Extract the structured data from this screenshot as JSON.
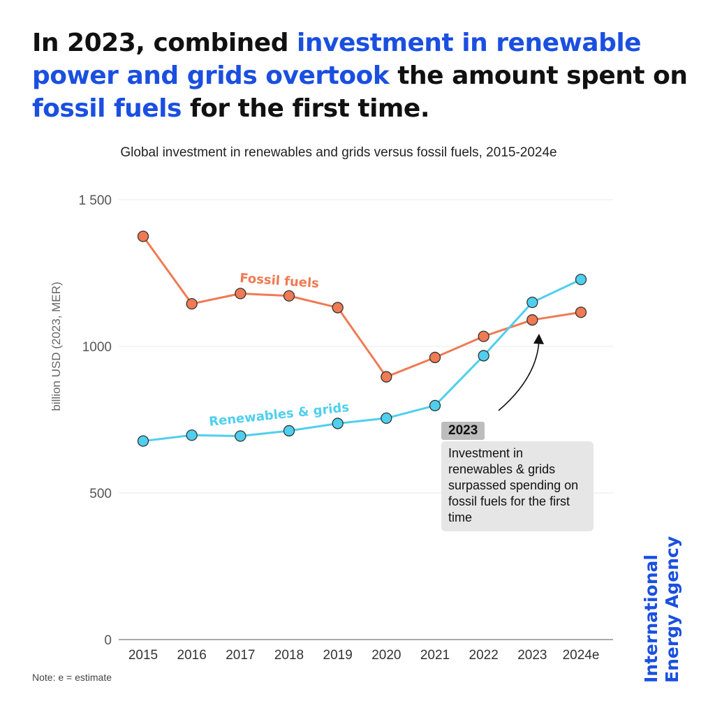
{
  "headline": {
    "part1": "In 2023, combined ",
    "part2": "investment in renewable power and grids overtook",
    "part3": " the amount spent on ",
    "part4": "fossil fuels",
    "part5": " for the first time."
  },
  "note": "Note: e = estimate",
  "logo": {
    "line1": "International",
    "line2": "Energy Agency"
  },
  "callout": {
    "year": "2023",
    "text": "Investment in renewables & grids surpassed spending on fossil fuels for the first time"
  },
  "colors": {
    "fossil": "#ef7a53",
    "renewables": "#4fcfee",
    "accent": "#1a4fe0"
  },
  "chart_data": {
    "type": "line",
    "title": "Global investment in renewables and grids versus fossil fuels, 2015-2024e",
    "xlabel": "",
    "ylabel": "billion USD (2023, MER)",
    "categories": [
      "2015",
      "2016",
      "2017",
      "2018",
      "2019",
      "2020",
      "2021",
      "2022",
      "2023",
      "2024e"
    ],
    "ylim": [
      0,
      1500
    ],
    "yticks": [
      0,
      500,
      1000,
      1500
    ],
    "ytick_labels": [
      "0",
      "500",
      "1000",
      "1 500"
    ],
    "grid": true,
    "series": [
      {
        "name": "Fossil fuels",
        "label": "Fossil fuels",
        "values": [
          1375,
          1145,
          1180,
          1172,
          1132,
          896,
          962,
          1034,
          1090,
          1116
        ]
      },
      {
        "name": "Renewables & grids",
        "label": "Renewables & grids",
        "values": [
          677,
          697,
          694,
          712,
          737,
          755,
          798,
          968,
          1150,
          1228
        ]
      }
    ]
  }
}
